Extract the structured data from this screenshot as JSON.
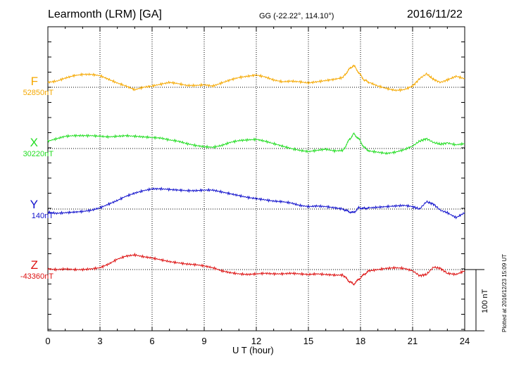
{
  "header": {
    "title": "Learmonth (LRM)  [GA]",
    "coords": "GG (-22.22°, 114.10°)",
    "date": "2016/11/22"
  },
  "side_note": "Plotted at 2016/12/23 15:09 UT",
  "scale_bar": {
    "label": "100 nT",
    "value_nT": 100
  },
  "chart_data": {
    "type": "line",
    "title": "Learmonth (LRM)  [GA]",
    "xlabel": "U T (hour)",
    "ylabel": "",
    "xlim": [
      0,
      24
    ],
    "xticks": [
      "0",
      "3",
      "6",
      "9",
      "12",
      "15",
      "18",
      "21",
      "24"
    ],
    "grid": true,
    "series": [
      {
        "name": "F",
        "baseline_label": "52850nT",
        "color": "#f5a800",
        "x": [
          0,
          0.5,
          1,
          1.5,
          2,
          2.5,
          3,
          3.5,
          4,
          4.5,
          5,
          5.5,
          6,
          6.5,
          7,
          7.5,
          8,
          8.5,
          9,
          9.5,
          10,
          10.5,
          11,
          11.5,
          12,
          12.5,
          13,
          13.5,
          14,
          14.5,
          15,
          15.5,
          16,
          16.5,
          17,
          17.3,
          17.6,
          17.9,
          18.2,
          18.5,
          19,
          19.5,
          20,
          20.5,
          21,
          21.4,
          21.8,
          22.2,
          22.6,
          23,
          23.5,
          24
        ],
        "y": [
          8,
          10,
          15,
          19,
          21,
          21,
          19,
          13,
          7,
          2,
          -4,
          0,
          2,
          5,
          8,
          6,
          3,
          3,
          4,
          2,
          7,
          12,
          16,
          18,
          20,
          17,
          12,
          9,
          10,
          9,
          7,
          9,
          11,
          13,
          16,
          28,
          36,
          24,
          12,
          8,
          2,
          -2,
          -5,
          -4,
          2,
          14,
          22,
          13,
          8,
          12,
          18,
          14
        ]
      },
      {
        "name": "X",
        "baseline_label": "30220nT",
        "color": "#22dd22",
        "x": [
          0,
          0.5,
          1,
          1.5,
          2,
          2.5,
          3,
          3.5,
          4,
          4.5,
          5,
          5.5,
          6,
          6.5,
          7,
          7.5,
          8,
          8.5,
          9,
          9.5,
          10,
          10.5,
          11,
          11.5,
          12,
          12.5,
          13,
          13.5,
          14,
          14.5,
          15,
          15.5,
          16,
          16.5,
          17,
          17.3,
          17.6,
          17.9,
          18.2,
          18.5,
          19,
          19.5,
          20,
          20.5,
          21,
          21.4,
          21.8,
          22.2,
          22.6,
          23,
          23.5,
          24
        ],
        "y": [
          12,
          16,
          20,
          21,
          21,
          21,
          20,
          19,
          20,
          21,
          20,
          19,
          18,
          17,
          14,
          12,
          8,
          5,
          3,
          2,
          5,
          10,
          13,
          14,
          15,
          12,
          8,
          4,
          0,
          -3,
          -5,
          -3,
          -1,
          -4,
          -3,
          12,
          24,
          16,
          2,
          -4,
          -6,
          -8,
          -6,
          -2,
          4,
          12,
          16,
          10,
          7,
          9,
          6,
          8
        ]
      },
      {
        "name": "Y",
        "baseline_label": "140nT",
        "color": "#1111cc",
        "x": [
          0,
          0.5,
          1,
          1.5,
          2,
          2.5,
          3,
          3.5,
          4,
          4.5,
          5,
          5.5,
          6,
          6.5,
          7,
          7.5,
          8,
          8.5,
          9,
          9.5,
          10,
          10.5,
          11,
          11.5,
          12,
          12.5,
          13,
          13.5,
          14,
          14.5,
          15,
          15.5,
          16,
          16.5,
          17,
          17.3,
          17.6,
          17.9,
          18.2,
          18.5,
          19,
          19.5,
          20,
          20.5,
          21,
          21.4,
          21.8,
          22.2,
          22.6,
          23,
          23.5,
          24
        ],
        "y": [
          -5,
          -7,
          -6,
          -5,
          -4,
          -2,
          2,
          8,
          14,
          21,
          26,
          30,
          33,
          33,
          32,
          31,
          30,
          30,
          31,
          31,
          28,
          25,
          22,
          19,
          17,
          15,
          13,
          12,
          10,
          6,
          4,
          5,
          4,
          2,
          0,
          -4,
          -6,
          2,
          1,
          2,
          3,
          4,
          5,
          6,
          4,
          0,
          12,
          8,
          -2,
          -6,
          -14,
          -6
        ]
      },
      {
        "name": "Z",
        "baseline_label": "-43360nT",
        "color": "#dd1111",
        "x": [
          0,
          0.5,
          1,
          1.5,
          2,
          2.5,
          3,
          3.5,
          4,
          4.5,
          5,
          5.5,
          6,
          6.5,
          7,
          7.5,
          8,
          8.5,
          9,
          9.5,
          10,
          10.5,
          11,
          11.5,
          12,
          12.5,
          13,
          13.5,
          14,
          14.5,
          15,
          15.5,
          16,
          16.5,
          17,
          17.3,
          17.6,
          17.9,
          18.2,
          18.5,
          19,
          19.5,
          20,
          20.5,
          21,
          21.4,
          21.8,
          22.2,
          22.6,
          23,
          23.5,
          24
        ],
        "y": [
          1,
          0,
          1,
          0,
          0,
          1,
          3,
          9,
          17,
          22,
          24,
          21,
          19,
          16,
          13,
          11,
          9,
          8,
          6,
          3,
          -2,
          -5,
          -7,
          -8,
          -7,
          -6,
          -7,
          -7,
          -6,
          -7,
          -8,
          -7,
          -8,
          -9,
          -9,
          -18,
          -24,
          -16,
          -8,
          -2,
          0,
          2,
          3,
          2,
          -2,
          -10,
          -8,
          4,
          2,
          -6,
          -8,
          -2
        ]
      }
    ]
  }
}
